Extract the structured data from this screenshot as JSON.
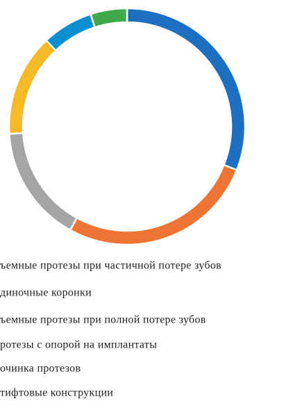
{
  "chart_data": {
    "type": "donut",
    "categories": [
      "ъемные протезы при частичной потере зубов",
      "диночные коронки",
      "ъемные протезы при полной потере зубов",
      "ротезы с опорой на имплантаты",
      "очинка протезов",
      "тифтовые конструкции"
    ],
    "values": [
      31,
      27,
      16,
      14,
      7,
      5
    ],
    "colors": [
      "#1c6fc1",
      "#ed7433",
      "#a5a5a5",
      "#f8b928",
      "#0b8fd3",
      "#3ea84b"
    ]
  }
}
